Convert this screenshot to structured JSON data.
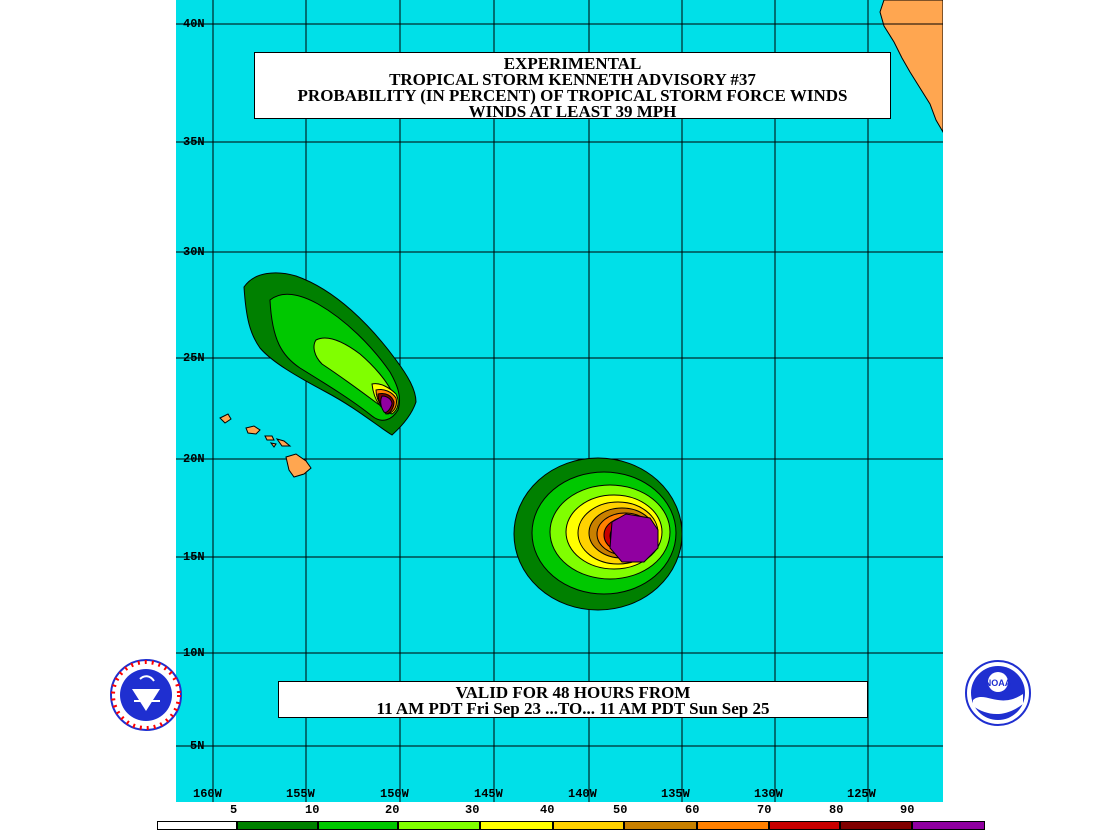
{
  "title": {
    "line1": "EXPERIMENTAL",
    "line2": "TROPICAL STORM KENNETH ADVISORY #37",
    "line3": "PROBABILITY (IN PERCENT) OF TROPICAL STORM FORCE WINDS",
    "line4": "WINDS AT LEAST 39 MPH"
  },
  "valid": {
    "line1": "VALID FOR 48 HOURS FROM",
    "line2": "11 AM PDT Fri Sep 23 ...TO... 11 AM PDT Sun Sep 25"
  },
  "map": {
    "ocean_color": "#00e0e8",
    "land_color": "#ffa650",
    "lat_labels": [
      "40N",
      "35N",
      "30N",
      "25N",
      "20N",
      "15N",
      "10N",
      "5N"
    ],
    "lon_labels": [
      "160W",
      "155W",
      "150W",
      "145W",
      "140W",
      "135W",
      "130W",
      "125W"
    ]
  },
  "legend": {
    "labels": [
      "5",
      "10",
      "20",
      "30",
      "40",
      "50",
      "60",
      "70",
      "80",
      "90"
    ],
    "colors": [
      "#ffffff",
      "#008000",
      "#00c800",
      "#80ff00",
      "#ffff00",
      "#ffd200",
      "#c88000",
      "#ff8000",
      "#c80000",
      "#800000",
      "#9000a0"
    ]
  },
  "logos": {
    "left": "nws-logo",
    "right": "noaa-logo",
    "noaa_text": "NOAA"
  }
}
